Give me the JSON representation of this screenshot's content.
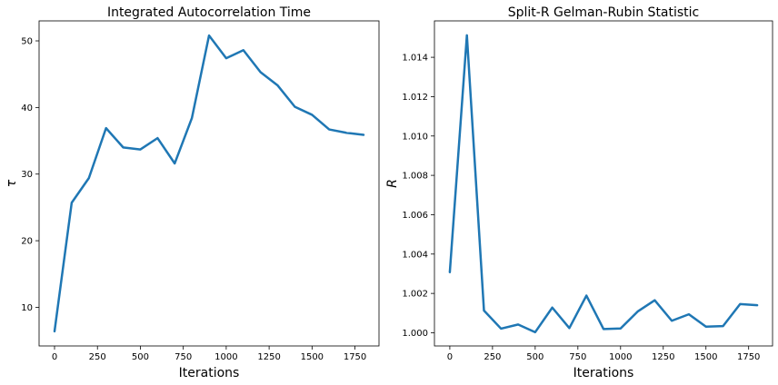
{
  "chart_data": [
    {
      "type": "line",
      "title": "Integrated Autocorrelation Time",
      "xlabel": "Iterations",
      "ylabel": "τ",
      "xlim": [
        -90,
        1890
      ],
      "ylim": [
        4.2,
        53.0
      ],
      "xticks": [
        0,
        250,
        500,
        750,
        1000,
        1250,
        1500,
        1750
      ],
      "yticks": [
        10,
        20,
        30,
        40,
        50
      ],
      "ytick_labels": [
        "10",
        "20",
        "30",
        "40",
        "50"
      ],
      "grid": false,
      "series": [
        {
          "color": "#1f77b4",
          "x": [
            0,
            100,
            200,
            300,
            400,
            500,
            600,
            700,
            800,
            900,
            1000,
            1100,
            1200,
            1300,
            1400,
            1500,
            1600,
            1700,
            1800
          ],
          "y": [
            6.4,
            25.7,
            29.4,
            36.9,
            34.0,
            33.7,
            35.4,
            31.6,
            38.4,
            50.8,
            47.4,
            48.6,
            45.3,
            43.3,
            40.1,
            38.9,
            36.7,
            36.2,
            35.9
          ]
        }
      ]
    },
    {
      "type": "line",
      "title": "Split-R Gelman-Rubin Statistic",
      "xlabel": "Iterations",
      "ylabel": "R",
      "xlim": [
        -90,
        1890
      ],
      "ylim": [
        0.99933,
        1.01585
      ],
      "xticks": [
        0,
        250,
        500,
        750,
        1000,
        1250,
        1500,
        1750
      ],
      "yticks": [
        1.0,
        1.002,
        1.004,
        1.006,
        1.008,
        1.01,
        1.012,
        1.014
      ],
      "ytick_labels": [
        "1.000",
        "1.002",
        "1.004",
        "1.006",
        "1.008",
        "1.010",
        "1.012",
        "1.014"
      ],
      "grid": false,
      "series": [
        {
          "color": "#1f77b4",
          "x": [
            0,
            100,
            200,
            300,
            400,
            500,
            600,
            700,
            800,
            900,
            1000,
            1100,
            1200,
            1300,
            1400,
            1500,
            1600,
            1700,
            1800
          ],
          "y": [
            1.00308,
            1.01512,
            1.00113,
            1.00021,
            1.00042,
            1.00003,
            1.00128,
            1.00024,
            1.00189,
            1.00019,
            1.00022,
            1.00108,
            1.00165,
            1.00061,
            1.00094,
            1.00031,
            1.00034,
            1.00146,
            1.0014
          ]
        }
      ]
    }
  ]
}
